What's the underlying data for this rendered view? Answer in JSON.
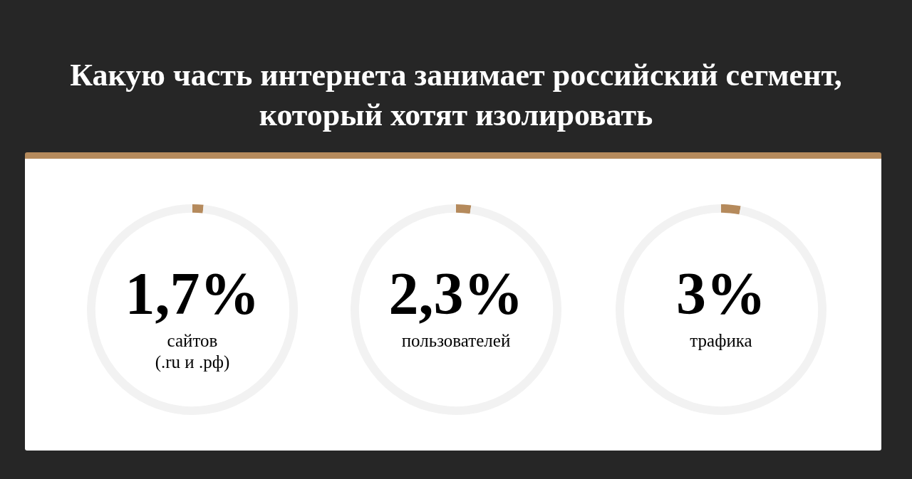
{
  "chart_data": [
    {
      "type": "donut",
      "title": "Какую часть интернета занимает российский сегмент, который хотят изолировать",
      "categories": [
        "сайтов\n(.ru и .рф)",
        null
      ],
      "values": [
        1.7,
        98.3
      ],
      "colors": [
        "#b58a5c",
        "#f2f2f2"
      ],
      "value_labels": [
        "1,7%",
        null
      ],
      "legend": false
    },
    {
      "type": "donut",
      "categories": [
        "пользователей",
        null
      ],
      "values": [
        2.3,
        97.7
      ],
      "colors": [
        "#b58a5c",
        "#f2f2f2"
      ],
      "value_labels": [
        "2,3%",
        null
      ],
      "legend": false
    },
    {
      "type": "donut",
      "categories": [
        "трафика",
        null
      ],
      "values": [
        3,
        97
      ],
      "colors": [
        "#b58a5c",
        "#f2f2f2"
      ],
      "value_labels": [
        "3%",
        null
      ],
      "legend": false
    }
  ]
}
